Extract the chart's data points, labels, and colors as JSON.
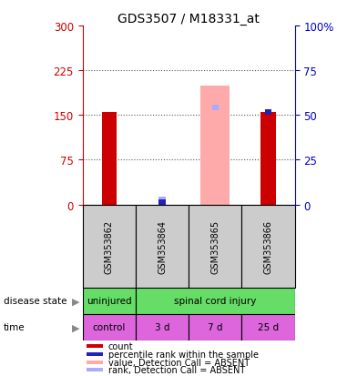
{
  "title": "GDS3507 / M18331_at",
  "samples": [
    "GSM353862",
    "GSM353864",
    "GSM353865",
    "GSM353866"
  ],
  "left_ylim": [
    0,
    300
  ],
  "left_yticks": [
    0,
    75,
    150,
    225,
    300
  ],
  "right_ylim": [
    0,
    100
  ],
  "right_yticks": [
    0,
    25,
    50,
    75,
    100
  ],
  "red_bars": [
    155,
    0,
    0,
    155
  ],
  "red_bar_present": [
    true,
    false,
    false,
    true
  ],
  "blue_sq_vals": [
    152,
    4,
    163,
    155
  ],
  "blue_sq_present": [
    false,
    true,
    false,
    true
  ],
  "pink_bars": [
    0,
    0,
    200,
    0
  ],
  "pink_bar_present": [
    false,
    false,
    true,
    false
  ],
  "lightblue_sq_vals": [
    0,
    8,
    163,
    0
  ],
  "lightblue_sq_present": [
    false,
    true,
    true,
    false
  ],
  "disease_state_labels": [
    "uninjured",
    "spinal cord injury"
  ],
  "time_labels": [
    "control",
    "3 d",
    "7 d",
    "25 d"
  ],
  "disease_color": "#66dd66",
  "time_color": "#dd66dd",
  "sample_bg_color": "#cccccc",
  "red_bar_color": "#cc0000",
  "blue_sq_color": "#2222bb",
  "pink_bar_color": "#ffaaaa",
  "lightblue_sq_color": "#aaaaff",
  "grid_color": "#555555",
  "left_axis_color": "#cc0000",
  "right_axis_color": "#0000cc",
  "legend_items": [
    {
      "label": "count",
      "color": "#cc0000"
    },
    {
      "label": "percentile rank within the sample",
      "color": "#2222bb"
    },
    {
      "label": "value, Detection Call = ABSENT",
      "color": "#ffaaaa"
    },
    {
      "label": "rank, Detection Call = ABSENT",
      "color": "#aaaaff"
    }
  ]
}
